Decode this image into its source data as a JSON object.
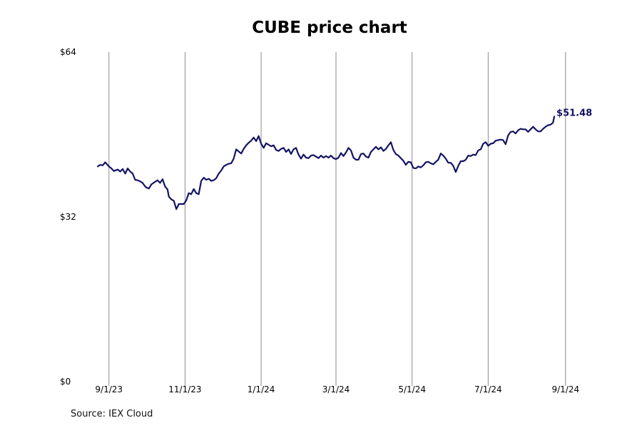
{
  "chart_data": {
    "type": "line",
    "title": "CUBE price chart",
    "xlabel": "",
    "ylabel": "",
    "ylim": [
      0,
      64
    ],
    "y_ticks": [
      0,
      32,
      64
    ],
    "y_tick_labels": [
      "$0",
      "$32",
      "$64"
    ],
    "x_ticks": [
      "2023-09-01",
      "2023-11-01",
      "2024-01-01",
      "2024-03-01",
      "2024-05-01",
      "2024-07-01",
      "2024-09-01"
    ],
    "x_tick_labels": [
      "9/1/23",
      "11/1/23",
      "1/1/24",
      "3/1/24",
      "5/1/24",
      "7/1/24",
      "9/1/24"
    ],
    "x_range": [
      "2023-08-11",
      "2024-09-28"
    ],
    "grid": "vertical lines at x ticks",
    "line_color": "#141464",
    "last_value_label": "$51.48",
    "series": [
      {
        "x": [
          "2023-08-23",
          "2023-08-25",
          "2023-08-27",
          "2023-08-29",
          "2023-09-01",
          "2023-09-03",
          "2023-09-05",
          "2023-09-08",
          "2023-09-10",
          "2023-09-12",
          "2023-09-14",
          "2023-09-16",
          "2023-09-18",
          "2023-09-20",
          "2023-09-22",
          "2023-09-24",
          "2023-09-26",
          "2023-09-28",
          "2023-09-30",
          "2023-10-01",
          "2023-10-03",
          "2023-10-05",
          "2023-10-08",
          "2023-10-10",
          "2023-10-12",
          "2023-10-14",
          "2023-10-16",
          "2023-10-18",
          "2023-10-19",
          "2023-10-21",
          "2023-10-23",
          "2023-10-25",
          "2023-10-27",
          "2023-10-29",
          "2023-10-31",
          "2023-11-02",
          "2023-11-04",
          "2023-11-06",
          "2023-11-08",
          "2023-11-10",
          "2023-11-12",
          "2023-11-14",
          "2023-11-16",
          "2023-11-18",
          "2023-11-20",
          "2023-11-22",
          "2023-11-24",
          "2023-11-26",
          "2023-11-28",
          "2023-11-30",
          "2023-12-02",
          "2023-12-04",
          "2023-12-06",
          "2023-12-08",
          "2023-12-10",
          "2023-12-12",
          "2023-12-14",
          "2023-12-16",
          "2023-12-18",
          "2023-12-20",
          "2023-12-22",
          "2023-12-24",
          "2023-12-26",
          "2023-12-28",
          "2023-12-30",
          "2024-01-01",
          "2024-01-03",
          "2024-01-05",
          "2024-01-07",
          "2024-01-09",
          "2024-01-11",
          "2024-01-13",
          "2024-01-15",
          "2024-01-17",
          "2024-01-19",
          "2024-01-21",
          "2024-01-23",
          "2024-01-25",
          "2024-01-27",
          "2024-01-29",
          "2024-01-31",
          "2024-02-02",
          "2024-02-04",
          "2024-02-06",
          "2024-02-08",
          "2024-02-10",
          "2024-02-12",
          "2024-02-14",
          "2024-02-16",
          "2024-02-18",
          "2024-02-20",
          "2024-02-22",
          "2024-02-24",
          "2024-02-26",
          "2024-02-28",
          "2024-03-01",
          "2024-03-03",
          "2024-03-05",
          "2024-03-07",
          "2024-03-09",
          "2024-03-11",
          "2024-03-13",
          "2024-03-15",
          "2024-03-17",
          "2024-03-19",
          "2024-03-21",
          "2024-03-23",
          "2024-03-25",
          "2024-03-27",
          "2024-03-29",
          "2024-03-31",
          "2024-04-02",
          "2024-04-04",
          "2024-04-06",
          "2024-04-08",
          "2024-04-10",
          "2024-04-12",
          "2024-04-14",
          "2024-04-16",
          "2024-04-18",
          "2024-04-20",
          "2024-04-22",
          "2024-04-24",
          "2024-04-26",
          "2024-04-28",
          "2024-04-30",
          "2024-05-02",
          "2024-05-04",
          "2024-05-06",
          "2024-05-08",
          "2024-05-10",
          "2024-05-12",
          "2024-05-14",
          "2024-05-16",
          "2024-05-18",
          "2024-05-20",
          "2024-05-22",
          "2024-05-24",
          "2024-05-26",
          "2024-05-28",
          "2024-05-30",
          "2024-06-01",
          "2024-06-03",
          "2024-06-05",
          "2024-06-07",
          "2024-06-09",
          "2024-06-11",
          "2024-06-13",
          "2024-06-15",
          "2024-06-17",
          "2024-06-19",
          "2024-06-21",
          "2024-06-23",
          "2024-06-25",
          "2024-06-27",
          "2024-06-29",
          "2024-07-01",
          "2024-07-03",
          "2024-07-05",
          "2024-07-07",
          "2024-07-09",
          "2024-07-11",
          "2024-07-13",
          "2024-07-15",
          "2024-07-17",
          "2024-07-19",
          "2024-07-21",
          "2024-07-23",
          "2024-07-25",
          "2024-07-27",
          "2024-07-29",
          "2024-07-31",
          "2024-08-02",
          "2024-08-04",
          "2024-08-06",
          "2024-08-08",
          "2024-08-10",
          "2024-08-12",
          "2024-08-14",
          "2024-08-16",
          "2024-08-18",
          "2024-08-20",
          "2024-08-22",
          "2024-08-23"
        ],
        "y": [
          41.8,
          42.1,
          42.0,
          42.6,
          41.8,
          41.4,
          40.9,
          41.2,
          40.8,
          41.3,
          40.4,
          41.4,
          40.8,
          40.4,
          39.2,
          39.1,
          38.9,
          38.6,
          37.9,
          37.7,
          37.5,
          38.3,
          38.8,
          39.1,
          38.6,
          39.3,
          37.9,
          37.3,
          35.9,
          35.4,
          35.1,
          33.5,
          34.5,
          34.5,
          34.5,
          35.2,
          36.6,
          36.4,
          37.4,
          36.6,
          36.4,
          39.0,
          39.6,
          39.2,
          39.4,
          39.0,
          39.1,
          39.5,
          40.4,
          41.0,
          41.8,
          42.1,
          42.3,
          42.4,
          43.3,
          45.1,
          44.7,
          44.3,
          45.2,
          45.9,
          46.4,
          46.8,
          47.4,
          46.7,
          47.7,
          46.2,
          45.4,
          46.3,
          46.0,
          45.7,
          45.9,
          45.0,
          44.8,
          45.2,
          45.4,
          44.6,
          45.1,
          44.2,
          45.1,
          45.4,
          44.1,
          43.3,
          44.1,
          43.5,
          43.4,
          43.9,
          44.0,
          43.7,
          43.4,
          43.9,
          43.5,
          43.8,
          43.5,
          43.9,
          43.4,
          43.2,
          43.5,
          44.4,
          43.8,
          44.5,
          45.4,
          44.9,
          43.5,
          43.1,
          43.1,
          44.2,
          44.3,
          43.7,
          43.5,
          44.6,
          45.1,
          45.6,
          45.1,
          45.5,
          44.8,
          45.2,
          45.9,
          46.5,
          45.0,
          44.2,
          43.9,
          43.4,
          42.9,
          42.1,
          42.7,
          42.6,
          41.5,
          41.4,
          41.8,
          41.6,
          42.0,
          42.6,
          42.7,
          42.4,
          42.2,
          42.7,
          43.1,
          44.3,
          43.9,
          43.3,
          42.5,
          42.5,
          41.9,
          40.7,
          41.9,
          42.8,
          42.8,
          43.1,
          43.9,
          43.8,
          44.1,
          44.0,
          44.9,
          45.1,
          46.2,
          46.5,
          45.8,
          46.2,
          46.3,
          46.8,
          46.9,
          47.0,
          46.9,
          46.1,
          47.8,
          48.5,
          48.6,
          48.2,
          48.8,
          49.1,
          49.0,
          49.0,
          48.5,
          49.0,
          49.5,
          49.0,
          48.6,
          48.6,
          49.1,
          49.5,
          49.8,
          49.9,
          50.3,
          51.48
        ]
      }
    ]
  },
  "footer": {
    "source": "Source: IEX Cloud"
  }
}
